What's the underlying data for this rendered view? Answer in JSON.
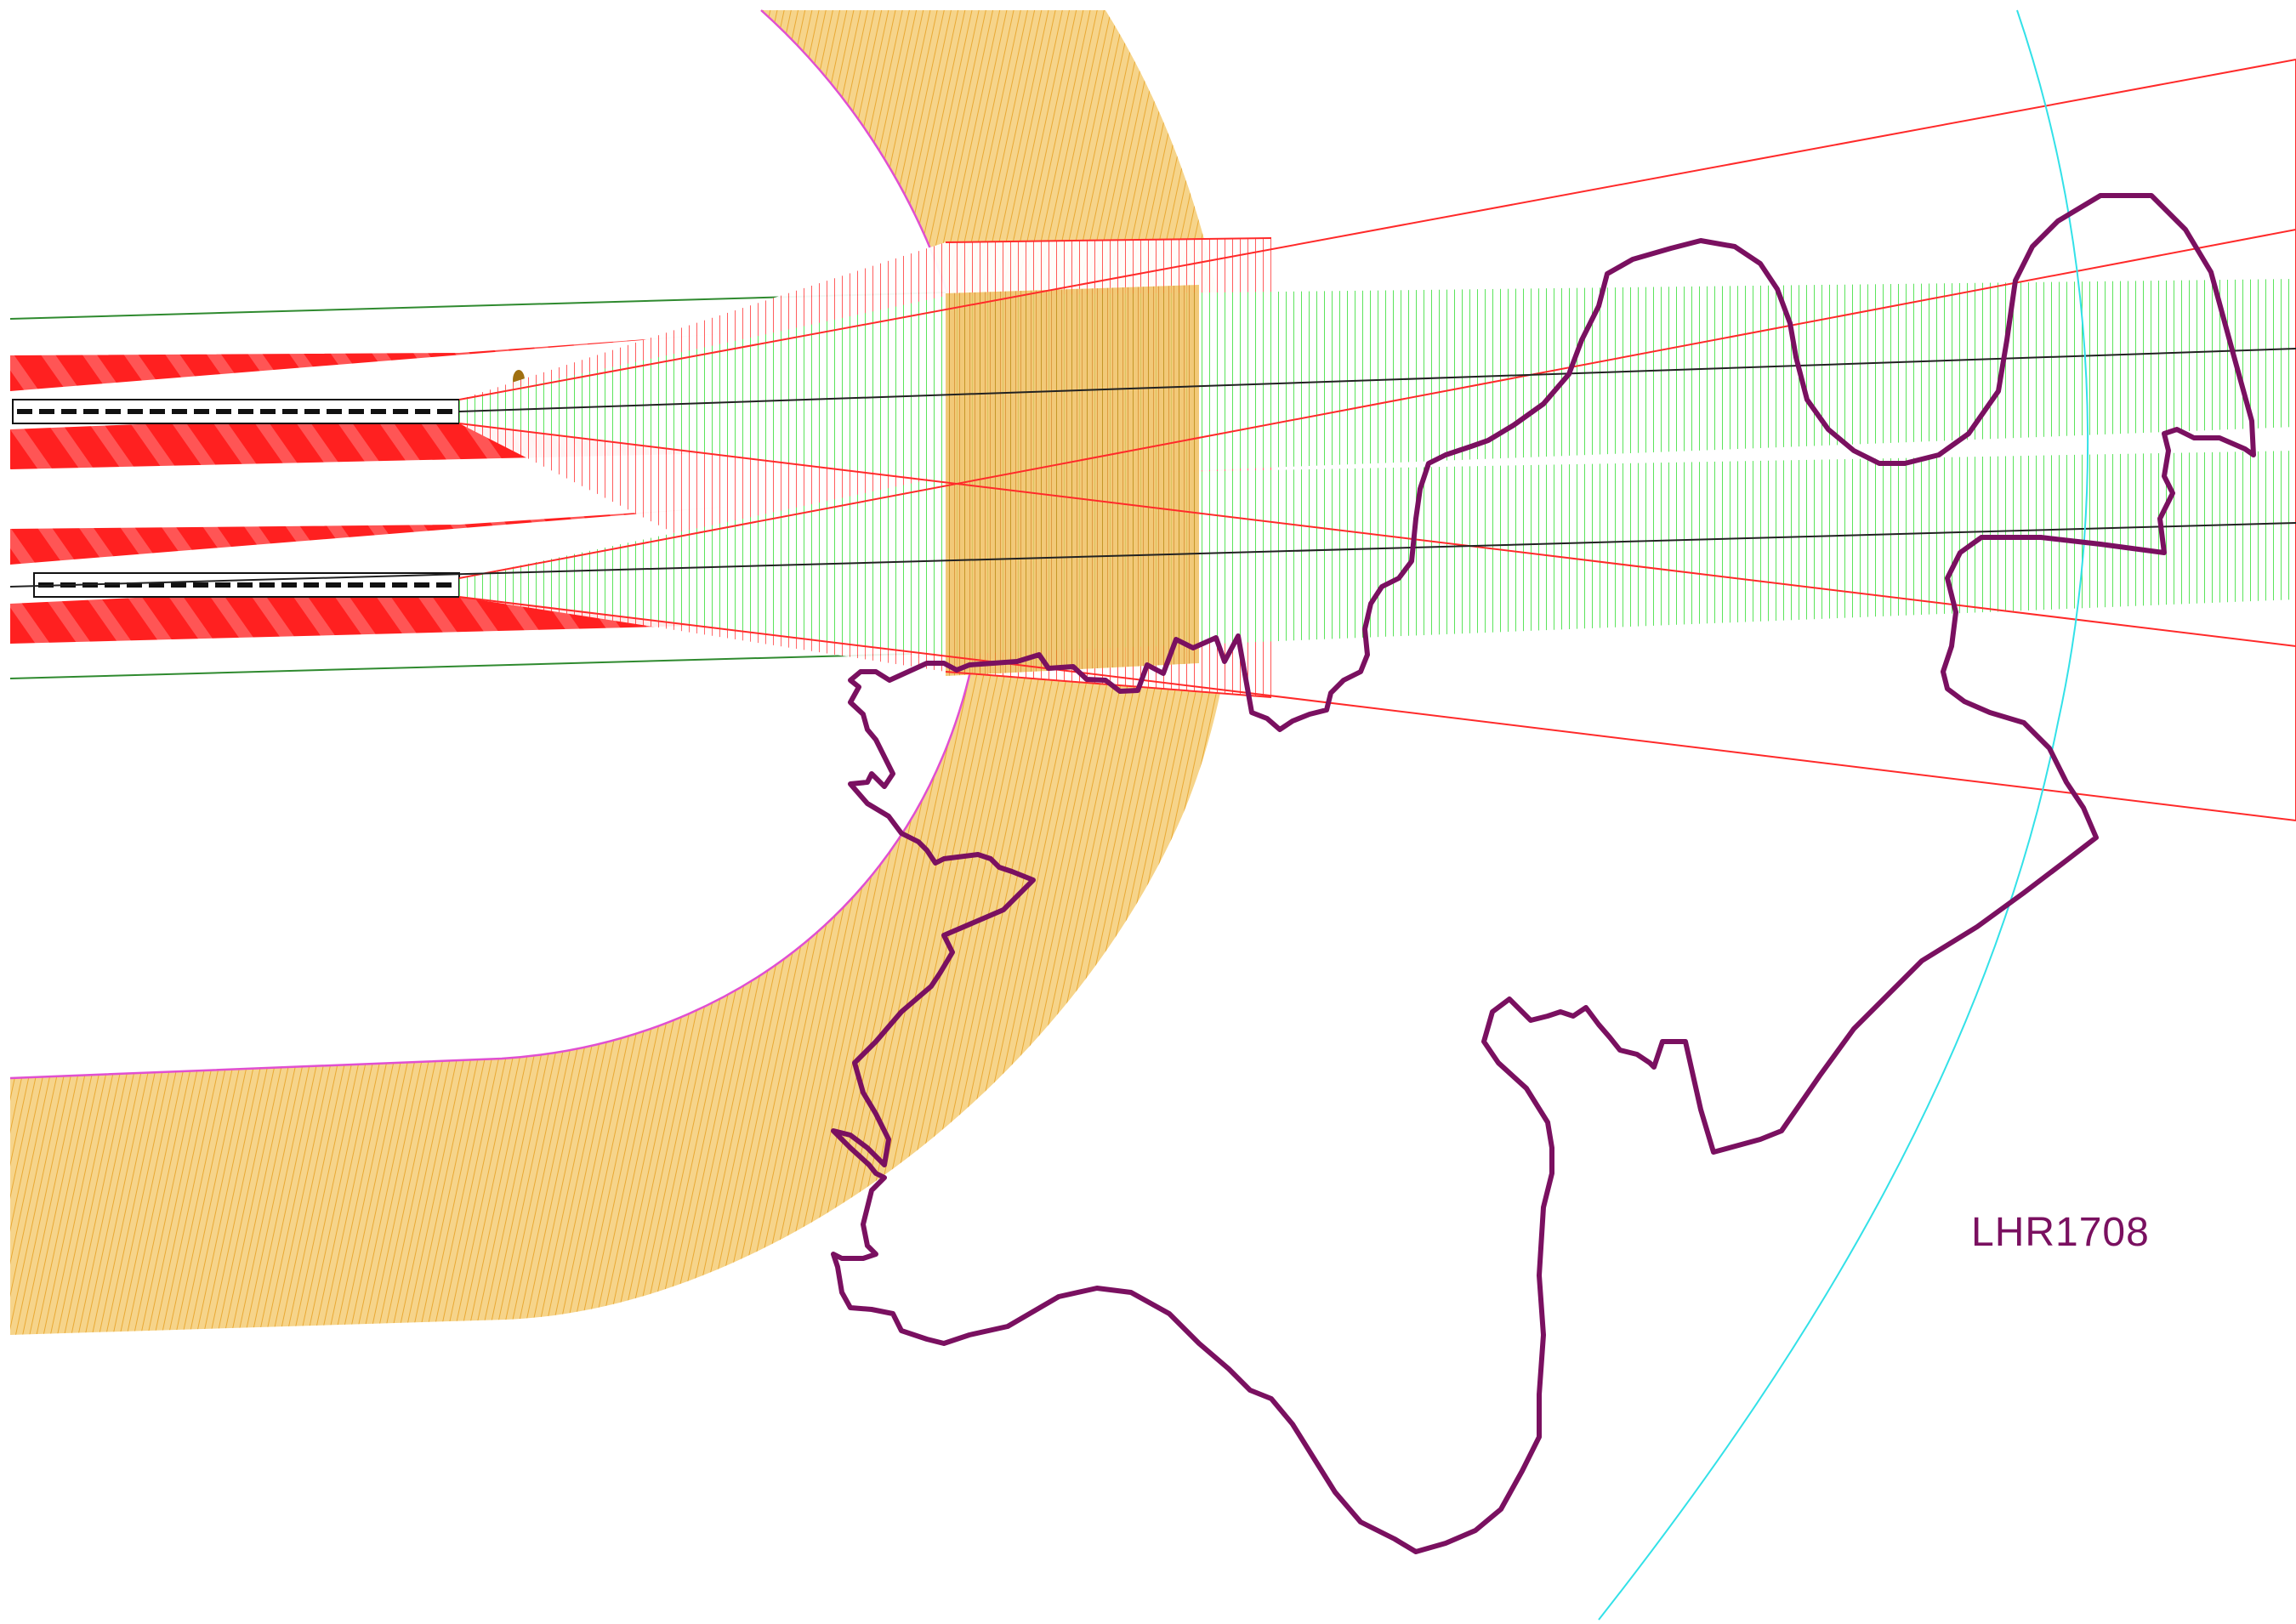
{
  "map": {
    "label": "LHR1708",
    "colors": {
      "background": "#ffffff",
      "holding_area_fill": "#f2c76d",
      "holding_area_hatch": "#e7a93a",
      "holding_area_edge": "#e04fd1",
      "approach_red": "#ff2a2a",
      "approach_red_fill": "#ff3b3b",
      "approach_green": "#33dd33",
      "guide_green": "#2f8a2f",
      "centerline": "#222222",
      "boundary": "#7a1060",
      "circle": "#33e1e8",
      "runway": "#111111"
    },
    "layers": [
      {
        "name": "curved-holding-area",
        "color_key": "holding_area_fill"
      },
      {
        "name": "runway-approach-surfaces",
        "color_key": "approach_red"
      },
      {
        "name": "extended-approach-corridors",
        "color_key": "approach_green"
      },
      {
        "name": "district-boundary",
        "color_key": "boundary"
      },
      {
        "name": "radius-circle",
        "color_key": "circle"
      }
    ]
  }
}
